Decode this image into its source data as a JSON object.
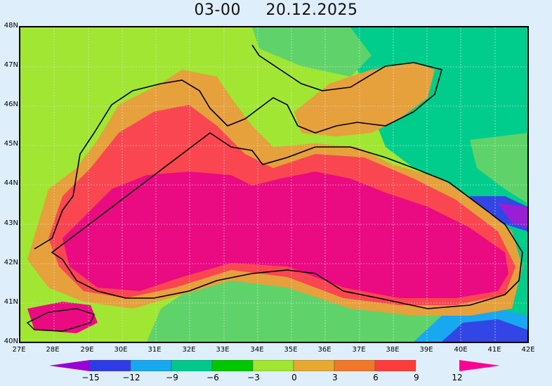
{
  "title": {
    "time": "03-00",
    "date": "20.12.2025"
  },
  "latitude_labels": [
    "48N",
    "47N",
    "46N",
    "45N",
    "44N",
    "43N",
    "42N",
    "41N",
    "40N"
  ],
  "longitude_labels": [
    "27E",
    "28E",
    "29E",
    "30E",
    "31E",
    "32E",
    "33E",
    "34E",
    "35E",
    "36E",
    "37E",
    "38E",
    "39E",
    "40E",
    "41E",
    "42E"
  ],
  "colorbar": {
    "labels": [
      "-15",
      "-12",
      "-9",
      "-6",
      "-3",
      "0",
      "3",
      "6",
      "9",
      "12"
    ],
    "colors": [
      "#9a00d6",
      "#2e3ce8",
      "#18a8f0",
      "#00c88c",
      "#00c800",
      "#a0e632",
      "#e6aa32",
      "#f07828",
      "#ff3c3c",
      "#ff0096"
    ]
  },
  "field_colors": {
    "very_warm": "#ea0a82",
    "warm": "#fa4650",
    "mild": "#f08232",
    "cool_orange": "#e6a03c",
    "light_green": "#a0e632",
    "green": "#5fd36a",
    "teal": "#00cd8c",
    "cyan": "#18a8f0",
    "blue": "#3246e6",
    "purple": "#9a1ed6"
  }
}
